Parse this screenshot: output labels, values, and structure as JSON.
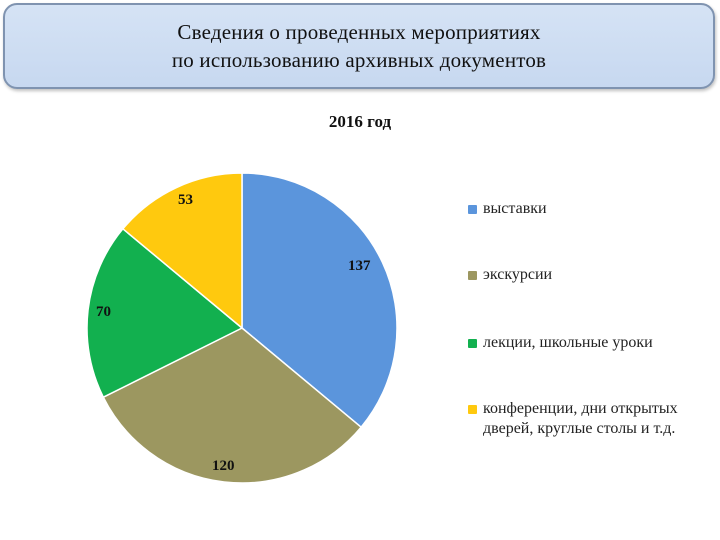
{
  "header": {
    "line1": "Сведения о проведенных мероприятиях",
    "line2": "по использованию архивных документов"
  },
  "chart_data": {
    "type": "pie",
    "title": "2016 год",
    "categories": [
      "выставки",
      "экскурсии",
      "лекции, школьные уроки",
      "конференции, дни открытых дверей, круглые столы и т.д."
    ],
    "values": [
      137,
      120,
      70,
      53
    ],
    "colors": [
      "#5b95dc",
      "#9c9760",
      "#12b04f",
      "#ffc90e"
    ],
    "legend_position": "right",
    "data_labels": [
      "137",
      "120",
      "70",
      "53"
    ]
  }
}
